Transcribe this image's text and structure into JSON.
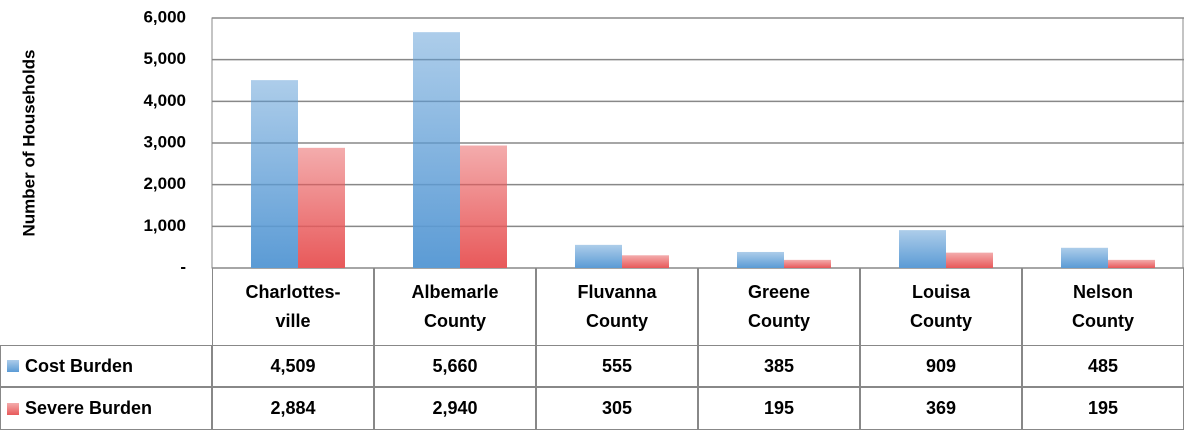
{
  "chart_data": {
    "type": "bar",
    "y_axis_label": "Number of Households",
    "categories": [
      "Charlottes-\nville",
      "Albemarle\nCounty",
      "Fluvanna\nCounty",
      "Greene\nCounty",
      "Louisa\nCounty",
      "Nelson\nCounty"
    ],
    "series": [
      {
        "name": "Cost Burden",
        "color": "#5b9bd5",
        "values": [
          4509,
          5660,
          555,
          385,
          909,
          485
        ],
        "value_labels": [
          "4,509",
          "5,660",
          "555",
          "385",
          "909",
          "485"
        ]
      },
      {
        "name": "Severe Burden",
        "color": "#e8595a",
        "values": [
          2884,
          2940,
          305,
          195,
          369,
          195
        ],
        "value_labels": [
          "2,884",
          "2,940",
          "305",
          "195",
          "369",
          "195"
        ]
      }
    ],
    "ylim": [
      0,
      6000
    ],
    "yticks": [
      {
        "value": 0,
        "label": "-"
      },
      {
        "value": 1000,
        "label": "1,000"
      },
      {
        "value": 2000,
        "label": "2,000"
      },
      {
        "value": 3000,
        "label": "3,000"
      },
      {
        "value": 4000,
        "label": "4,000"
      },
      {
        "value": 5000,
        "label": "5,000"
      },
      {
        "value": 6000,
        "label": "6,000"
      }
    ],
    "grid": true,
    "data_table": true
  }
}
